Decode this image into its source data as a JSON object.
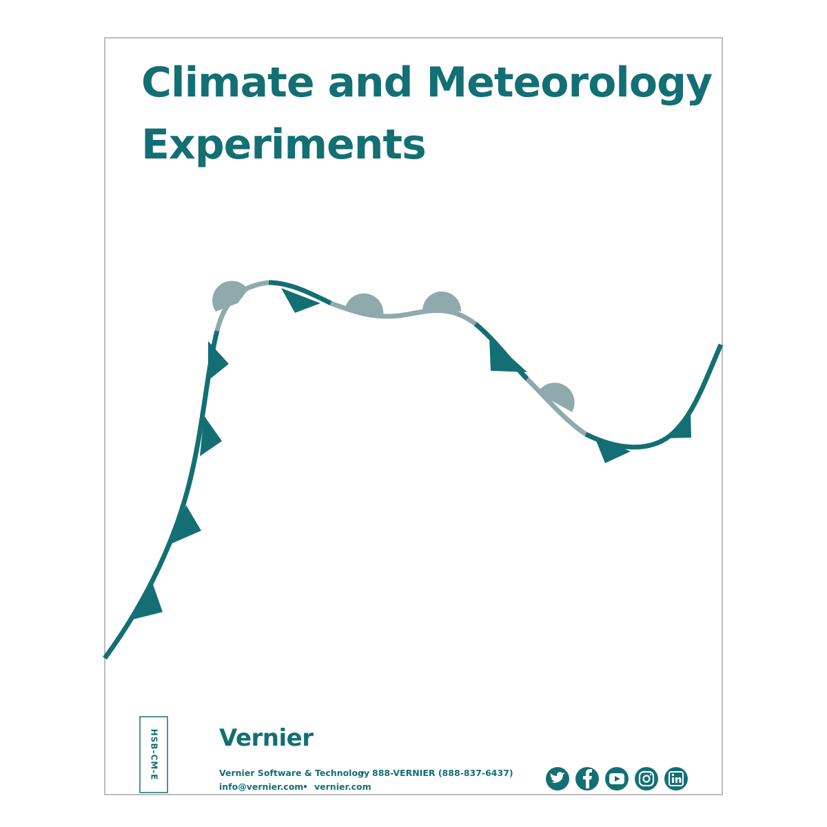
{
  "title": {
    "lines": [
      "Climate and Meteorology",
      "Experiments"
    ]
  },
  "code": "HSB-CM-E",
  "logo": "Vernier",
  "contact": {
    "line1": [
      "Vernier Software & Technology",
      "•",
      "888-VERNIER (888-837-6437)"
    ],
    "line2": [
      "info@vernier.com",
      "•",
      "vernier.com"
    ]
  }
}
